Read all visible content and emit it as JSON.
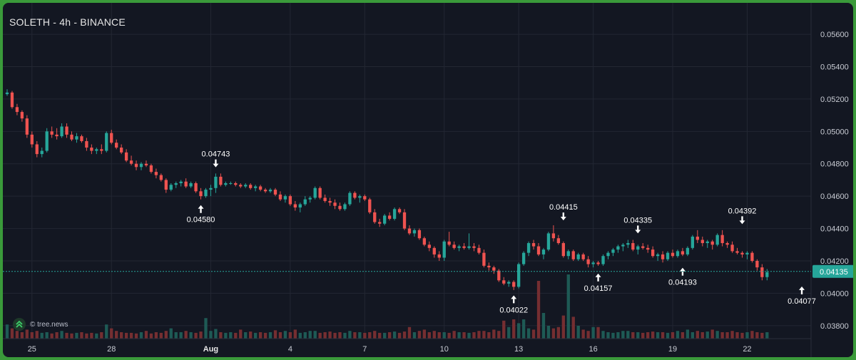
{
  "header": {
    "title": "SOLETH - 4h - BINANCE"
  },
  "watermark": {
    "text": "© tree.news",
    "icon": "tree-news-logo-icon"
  },
  "colors": {
    "up": "#26a69a",
    "down": "#ef5350",
    "background": "#131722",
    "grid": "#232733",
    "price_line": "#26a69a"
  },
  "chart_data": {
    "type": "candlestick",
    "symbol": "SOLETH",
    "interval": "4h",
    "exchange": "BINANCE",
    "grid": true,
    "ylim": [
      0.0372,
      0.0575
    ],
    "x_range": [
      0,
      161
    ],
    "y_ticks": [
      "0.05600",
      "0.05400",
      "0.05200",
      "0.05000",
      "0.04800",
      "0.04600",
      "0.04400",
      "0.04200",
      "0.04000",
      "0.03800"
    ],
    "x_ticks": [
      {
        "label": "25",
        "x": 5
      },
      {
        "label": "28",
        "x": 21
      },
      {
        "label": "Aug",
        "x": 41,
        "bold": true
      },
      {
        "label": "4",
        "x": 57
      },
      {
        "label": "7",
        "x": 72
      },
      {
        "label": "10",
        "x": 88
      },
      {
        "label": "13",
        "x": 103
      },
      {
        "label": "16",
        "x": 118
      },
      {
        "label": "19",
        "x": 134
      },
      {
        "label": "22",
        "x": 149
      }
    ],
    "last_price": "0.04135",
    "candles": [
      [
        0.0523,
        0.0526,
        0.0522,
        0.0524
      ],
      [
        0.0524,
        0.0525,
        0.0514,
        0.0515
      ],
      [
        0.0515,
        0.0517,
        0.051,
        0.0512
      ],
      [
        0.0512,
        0.0513,
        0.0506,
        0.0508
      ],
      [
        0.0508,
        0.051,
        0.0496,
        0.0498
      ],
      [
        0.0498,
        0.05,
        0.049,
        0.0492
      ],
      [
        0.0492,
        0.0494,
        0.0484,
        0.0486
      ],
      [
        0.0486,
        0.049,
        0.0484,
        0.0488
      ],
      [
        0.0488,
        0.0502,
        0.0487,
        0.05
      ],
      [
        0.05,
        0.0503,
        0.0496,
        0.0498
      ],
      [
        0.0498,
        0.0502,
        0.0495,
        0.0497
      ],
      [
        0.0497,
        0.0505,
        0.0496,
        0.0503
      ],
      [
        0.0503,
        0.0505,
        0.0496,
        0.0498
      ],
      [
        0.0498,
        0.05,
        0.0494,
        0.0495
      ],
      [
        0.0495,
        0.0499,
        0.0493,
        0.0497
      ],
      [
        0.0497,
        0.0498,
        0.0493,
        0.0494
      ],
      [
        0.0494,
        0.0496,
        0.0488,
        0.049
      ],
      [
        0.049,
        0.0492,
        0.0486,
        0.0488
      ],
      [
        0.0488,
        0.049,
        0.0486,
        0.0489
      ],
      [
        0.0489,
        0.0492,
        0.0486,
        0.0488
      ],
      [
        0.0488,
        0.05,
        0.0487,
        0.0499
      ],
      [
        0.0499,
        0.0501,
        0.0492,
        0.0493
      ],
      [
        0.0493,
        0.0495,
        0.0489,
        0.049
      ],
      [
        0.049,
        0.0492,
        0.0486,
        0.0487
      ],
      [
        0.0487,
        0.0489,
        0.0481,
        0.0482
      ],
      [
        0.0482,
        0.0485,
        0.0479,
        0.048
      ],
      [
        0.048,
        0.0482,
        0.0476,
        0.0478
      ],
      [
        0.0478,
        0.0481,
        0.0476,
        0.048
      ],
      [
        0.048,
        0.0482,
        0.0478,
        0.0479
      ],
      [
        0.0479,
        0.048,
        0.0474,
        0.0475
      ],
      [
        0.0475,
        0.0477,
        0.0471,
        0.0473
      ],
      [
        0.0473,
        0.0474,
        0.0469,
        0.047
      ],
      [
        0.047,
        0.0471,
        0.0462,
        0.0464
      ],
      [
        0.0464,
        0.0468,
        0.0463,
        0.0467
      ],
      [
        0.0467,
        0.0469,
        0.0465,
        0.0468
      ],
      [
        0.0468,
        0.047,
        0.0466,
        0.0469
      ],
      [
        0.0469,
        0.0471,
        0.0465,
        0.0466
      ],
      [
        0.0466,
        0.0469,
        0.0465,
        0.0468
      ],
      [
        0.0468,
        0.0469,
        0.0462,
        0.0463
      ],
      [
        0.0463,
        0.0465,
        0.0458,
        0.046
      ],
      [
        0.046,
        0.0465,
        0.0459,
        0.0464
      ],
      [
        0.0464,
        0.0467,
        0.046,
        0.0465
      ],
      [
        0.0465,
        0.0474,
        0.0462,
        0.0472
      ],
      [
        0.0472,
        0.0474,
        0.0466,
        0.0467
      ],
      [
        0.0467,
        0.0469,
        0.0466,
        0.0468
      ],
      [
        0.0468,
        0.0469,
        0.0467,
        0.0468
      ],
      [
        0.0468,
        0.0469,
        0.0466,
        0.0467
      ],
      [
        0.0467,
        0.0468,
        0.0465,
        0.0466
      ],
      [
        0.0466,
        0.0468,
        0.0465,
        0.0467
      ],
      [
        0.0467,
        0.0468,
        0.0464,
        0.0465
      ],
      [
        0.0465,
        0.0467,
        0.0463,
        0.0466
      ],
      [
        0.0466,
        0.0467,
        0.0463,
        0.0464
      ],
      [
        0.0464,
        0.0465,
        0.0462,
        0.0463
      ],
      [
        0.0463,
        0.0465,
        0.0462,
        0.0464
      ],
      [
        0.0464,
        0.0465,
        0.046,
        0.0461
      ],
      [
        0.0461,
        0.0463,
        0.0457,
        0.0458
      ],
      [
        0.0458,
        0.0461,
        0.0456,
        0.046
      ],
      [
        0.046,
        0.0461,
        0.0454,
        0.0455
      ],
      [
        0.0455,
        0.0457,
        0.0451,
        0.0453
      ],
      [
        0.0453,
        0.0456,
        0.045,
        0.0455
      ],
      [
        0.0455,
        0.046,
        0.0454,
        0.0458
      ],
      [
        0.0458,
        0.046,
        0.0456,
        0.0459
      ],
      [
        0.0459,
        0.0466,
        0.0458,
        0.0465
      ],
      [
        0.0465,
        0.0466,
        0.0458,
        0.0459
      ],
      [
        0.0459,
        0.0461,
        0.0456,
        0.0457
      ],
      [
        0.0457,
        0.0459,
        0.0454,
        0.0456
      ],
      [
        0.0456,
        0.0458,
        0.0452,
        0.0454
      ],
      [
        0.0454,
        0.0456,
        0.0451,
        0.0452
      ],
      [
        0.0452,
        0.0456,
        0.0451,
        0.0455
      ],
      [
        0.0455,
        0.0463,
        0.0454,
        0.0462
      ],
      [
        0.0462,
        0.0463,
        0.0458,
        0.0459
      ],
      [
        0.0459,
        0.0461,
        0.0456,
        0.046
      ],
      [
        0.046,
        0.0461,
        0.0457,
        0.0458
      ],
      [
        0.0458,
        0.0459,
        0.0449,
        0.045
      ],
      [
        0.045,
        0.0452,
        0.0443,
        0.0444
      ],
      [
        0.0444,
        0.0446,
        0.0441,
        0.0443
      ],
      [
        0.0443,
        0.0449,
        0.0442,
        0.0448
      ],
      [
        0.0448,
        0.045,
        0.0445,
        0.0446
      ],
      [
        0.0446,
        0.0453,
        0.0445,
        0.0452
      ],
      [
        0.0452,
        0.0453,
        0.0449,
        0.045
      ],
      [
        0.045,
        0.0452,
        0.0439,
        0.044
      ],
      [
        0.044,
        0.0442,
        0.0436,
        0.0437
      ],
      [
        0.0437,
        0.044,
        0.0435,
        0.0439
      ],
      [
        0.0439,
        0.044,
        0.0433,
        0.0434
      ],
      [
        0.0434,
        0.0435,
        0.0429,
        0.043
      ],
      [
        0.043,
        0.0432,
        0.0426,
        0.0428
      ],
      [
        0.0428,
        0.0429,
        0.0422,
        0.0424
      ],
      [
        0.0424,
        0.0426,
        0.042,
        0.0422
      ],
      [
        0.0422,
        0.0433,
        0.042,
        0.0432
      ],
      [
        0.0432,
        0.0438,
        0.0429,
        0.043
      ],
      [
        0.043,
        0.0432,
        0.0427,
        0.0428
      ],
      [
        0.0428,
        0.043,
        0.0426,
        0.0429
      ],
      [
        0.0429,
        0.0431,
        0.0427,
        0.0428
      ],
      [
        0.0428,
        0.0437,
        0.0427,
        0.0429
      ],
      [
        0.0429,
        0.0431,
        0.0426,
        0.0428
      ],
      [
        0.0428,
        0.043,
        0.0424,
        0.0425
      ],
      [
        0.0425,
        0.0427,
        0.0416,
        0.0417
      ],
      [
        0.0417,
        0.0419,
        0.0414,
        0.0416
      ],
      [
        0.0416,
        0.0417,
        0.0412,
        0.0414
      ],
      [
        0.0414,
        0.0415,
        0.0407,
        0.0408
      ],
      [
        0.0408,
        0.041,
        0.0405,
        0.0406
      ],
      [
        0.0406,
        0.0408,
        0.0404,
        0.0407
      ],
      [
        0.0407,
        0.0408,
        0.0402,
        0.0404
      ],
      [
        0.0404,
        0.0419,
        0.0403,
        0.0418
      ],
      [
        0.0418,
        0.0426,
        0.0417,
        0.0425
      ],
      [
        0.0425,
        0.0432,
        0.0423,
        0.0431
      ],
      [
        0.0431,
        0.0433,
        0.0427,
        0.0429
      ],
      [
        0.0429,
        0.0431,
        0.0423,
        0.0424
      ],
      [
        0.0424,
        0.0428,
        0.0421,
        0.0427
      ],
      [
        0.0427,
        0.0438,
        0.0426,
        0.0437
      ],
      [
        0.0437,
        0.0442,
        0.0432,
        0.0434
      ],
      [
        0.0434,
        0.0436,
        0.043,
        0.0431
      ],
      [
        0.0431,
        0.0432,
        0.0422,
        0.0423
      ],
      [
        0.0423,
        0.0427,
        0.0421,
        0.0426
      ],
      [
        0.0426,
        0.0427,
        0.042,
        0.0421
      ],
      [
        0.0421,
        0.0425,
        0.042,
        0.0424
      ],
      [
        0.0424,
        0.0425,
        0.042,
        0.0421
      ],
      [
        0.0421,
        0.0423,
        0.0416,
        0.0418
      ],
      [
        0.0418,
        0.042,
        0.0416,
        0.0419
      ],
      [
        0.0419,
        0.042,
        0.0417,
        0.0418
      ],
      [
        0.0418,
        0.0424,
        0.0417,
        0.0423
      ],
      [
        0.0423,
        0.0426,
        0.0421,
        0.0425
      ],
      [
        0.0425,
        0.0428,
        0.0423,
        0.0427
      ],
      [
        0.0427,
        0.043,
        0.0425,
        0.0429
      ],
      [
        0.0429,
        0.0431,
        0.0426,
        0.043
      ],
      [
        0.043,
        0.0433,
        0.0428,
        0.0431
      ],
      [
        0.0431,
        0.0433,
        0.0426,
        0.0427
      ],
      [
        0.0427,
        0.043,
        0.0424,
        0.0429
      ],
      [
        0.0429,
        0.0431,
        0.0427,
        0.0428
      ],
      [
        0.0428,
        0.043,
        0.0425,
        0.0427
      ],
      [
        0.0427,
        0.0429,
        0.0422,
        0.0423
      ],
      [
        0.0423,
        0.0425,
        0.042,
        0.0424
      ],
      [
        0.0424,
        0.0426,
        0.0419,
        0.0421
      ],
      [
        0.0421,
        0.0426,
        0.042,
        0.0425
      ],
      [
        0.0425,
        0.0427,
        0.0422,
        0.0423
      ],
      [
        0.0423,
        0.0427,
        0.0422,
        0.0426
      ],
      [
        0.0426,
        0.0428,
        0.0423,
        0.0424
      ],
      [
        0.0424,
        0.0429,
        0.0423,
        0.0428
      ],
      [
        0.0428,
        0.0436,
        0.0427,
        0.0435
      ],
      [
        0.0435,
        0.0439,
        0.0431,
        0.0433
      ],
      [
        0.0433,
        0.0435,
        0.0429,
        0.0431
      ],
      [
        0.0431,
        0.0433,
        0.0428,
        0.0432
      ],
      [
        0.0432,
        0.0433,
        0.0427,
        0.043
      ],
      [
        0.043,
        0.0437,
        0.0429,
        0.0436
      ],
      [
        0.0436,
        0.0439,
        0.0429,
        0.0431
      ],
      [
        0.0431,
        0.0432,
        0.0428,
        0.043
      ],
      [
        0.043,
        0.0432,
        0.0425,
        0.0426
      ],
      [
        0.0426,
        0.0428,
        0.0424,
        0.0425
      ],
      [
        0.0425,
        0.0426,
        0.0422,
        0.0424
      ],
      [
        0.0424,
        0.0426,
        0.0421,
        0.0425
      ],
      [
        0.0425,
        0.0426,
        0.0419,
        0.042
      ],
      [
        0.042,
        0.0421,
        0.0414,
        0.0416
      ],
      [
        0.0416,
        0.0418,
        0.0408,
        0.041
      ],
      [
        0.041,
        0.0415,
        0.0408,
        0.0413
      ]
    ],
    "volume_scale_max": 1,
    "volumes": [
      0.22,
      0.16,
      0.12,
      0.1,
      0.14,
      0.1,
      0.12,
      0.09,
      0.1,
      0.08,
      0.1,
      0.12,
      0.09,
      0.08,
      0.09,
      0.1,
      0.08,
      0.09,
      0.08,
      0.1,
      0.22,
      0.16,
      0.12,
      0.1,
      0.09,
      0.09,
      0.08,
      0.1,
      0.12,
      0.08,
      0.1,
      0.09,
      0.12,
      0.16,
      0.1,
      0.1,
      0.12,
      0.1,
      0.09,
      0.11,
      0.32,
      0.12,
      0.15,
      0.1,
      0.09,
      0.1,
      0.09,
      0.14,
      0.1,
      0.11,
      0.09,
      0.1,
      0.09,
      0.1,
      0.13,
      0.1,
      0.12,
      0.1,
      0.14,
      0.09,
      0.1,
      0.12,
      0.12,
      0.09,
      0.1,
      0.11,
      0.09,
      0.1,
      0.09,
      0.12,
      0.1,
      0.1,
      0.09,
      0.1,
      0.12,
      0.09,
      0.09,
      0.1,
      0.11,
      0.09,
      0.11,
      0.18,
      0.1,
      0.12,
      0.14,
      0.1,
      0.12,
      0.1,
      0.1,
      0.09,
      0.12,
      0.1,
      0.1,
      0.09,
      0.1,
      0.12,
      0.12,
      0.1,
      0.14,
      0.12,
      0.28,
      0.18,
      0.3,
      0.24,
      0.3,
      0.16,
      0.14,
      0.9,
      0.4,
      0.2,
      0.16,
      0.18,
      0.36,
      1.0,
      0.34,
      0.2,
      0.14,
      0.12,
      0.18,
      0.18,
      0.12,
      0.1,
      0.09,
      0.1,
      0.12,
      0.12,
      0.1,
      0.1,
      0.09,
      0.1,
      0.11,
      0.1,
      0.1,
      0.09,
      0.1,
      0.12,
      0.1,
      0.14,
      0.1,
      0.12,
      0.1,
      0.11,
      0.14,
      0.12,
      0.1,
      0.1,
      0.12,
      0.1,
      0.09,
      0.1,
      0.12,
      0.1,
      0.09,
      0.1,
      0.12,
      0.1,
      0.1,
      0.12,
      0.14,
      0.38,
      0.36,
      0.08
    ],
    "annotations": [
      {
        "label": "0.04743",
        "index": 42,
        "price": 0.04743,
        "position": "above"
      },
      {
        "label": "0.04580",
        "index": 39,
        "price": 0.0458,
        "position": "below"
      },
      {
        "label": "0.04415",
        "index": 112,
        "price": 0.04415,
        "position": "above"
      },
      {
        "label": "0.04022",
        "index": 102,
        "price": 0.04022,
        "position": "below"
      },
      {
        "label": "0.04335",
        "index": 127,
        "price": 0.04335,
        "position": "above"
      },
      {
        "label": "0.04157",
        "index": 119,
        "price": 0.04157,
        "position": "below"
      },
      {
        "label": "0.04193",
        "index": 136,
        "price": 0.04193,
        "position": "below"
      },
      {
        "label": "0.04392",
        "index": 148,
        "price": 0.04392,
        "position": "above"
      },
      {
        "label": "0.04077",
        "index": 160,
        "price": 0.04077,
        "position": "below"
      }
    ]
  }
}
